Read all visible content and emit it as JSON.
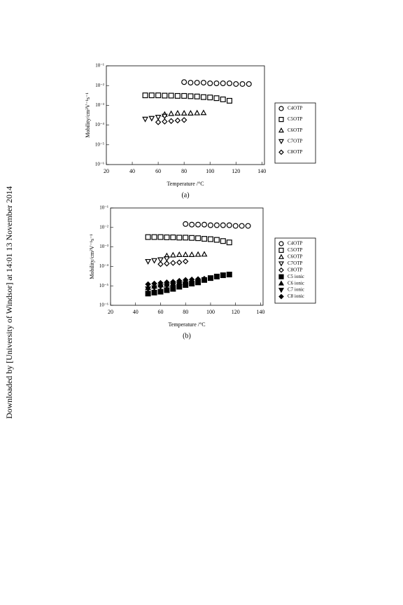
{
  "side_note": "Downloaded by [University of Windsor] at 14:01 13 November 2014",
  "chart_data": [
    {
      "type": "scatter",
      "caption": "(a)",
      "x_label": "Temperature /°C",
      "y_label": "Mobility/cm²V⁻¹s⁻¹",
      "xlim": [
        20,
        142
      ],
      "xticks": [
        20,
        40,
        60,
        80,
        100,
        120,
        140
      ],
      "ylim": [
        1e-06,
        0.1
      ],
      "log_y": true,
      "yticks": [
        {
          "value": 1e-06,
          "label": "10⁻⁶"
        },
        {
          "value": 1e-05,
          "label": "10⁻⁵"
        },
        {
          "value": 0.0001,
          "label": "10⁻⁴"
        },
        {
          "value": 0.001,
          "label": "10⁻³"
        },
        {
          "value": 0.01,
          "label": "10⁻²"
        },
        {
          "value": 0.1,
          "label": "10⁻¹"
        }
      ],
      "series": [
        {
          "name": "C4OTP",
          "marker": "circle",
          "filled": false,
          "color": "#000",
          "x": [
            80,
            85,
            90,
            95,
            100,
            105,
            110,
            115,
            120,
            125,
            130
          ],
          "values": [
            0.015,
            0.014,
            0.014,
            0.014,
            0.013,
            0.013,
            0.013,
            0.013,
            0.012,
            0.012,
            0.012
          ]
        },
        {
          "name": "C5OTP",
          "marker": "square",
          "filled": false,
          "color": "#000",
          "x": [
            50,
            55,
            60,
            65,
            70,
            75,
            80,
            85,
            90,
            95,
            100,
            105,
            110,
            115
          ],
          "values": [
            0.0032,
            0.0032,
            0.0032,
            0.0031,
            0.0031,
            0.003,
            0.003,
            0.0029,
            0.0028,
            0.0026,
            0.0025,
            0.0023,
            0.002,
            0.0017
          ]
        },
        {
          "name": "C6OTP",
          "marker": "triangle-up",
          "filled": false,
          "color": "#000",
          "x": [
            65,
            70,
            75,
            80,
            85,
            90,
            95
          ],
          "values": [
            0.00035,
            0.00038,
            0.0004,
            0.0004,
            0.0004,
            0.00041,
            0.00042
          ]
        },
        {
          "name": "C7OTP",
          "marker": "triangle-down",
          "filled": false,
          "color": "#000",
          "x": [
            50,
            55,
            60,
            65
          ],
          "values": [
            0.0002,
            0.00022,
            0.00025,
            0.00028
          ]
        },
        {
          "name": "C8OTP",
          "marker": "diamond",
          "filled": false,
          "color": "#000",
          "x": [
            60,
            65,
            70,
            75,
            80
          ],
          "values": [
            0.00014,
            0.00015,
            0.00016,
            0.00017,
            0.00018
          ]
        }
      ]
    },
    {
      "type": "scatter",
      "caption": "(b)",
      "x_label": "Temperature /°C",
      "y_label": "Mobility/cm²V⁻¹s⁻¹",
      "xlim": [
        20,
        142
      ],
      "xticks": [
        20,
        40,
        60,
        80,
        100,
        120,
        140
      ],
      "ylim": [
        1e-06,
        0.1
      ],
      "log_y": true,
      "yticks": [
        {
          "value": 1e-06,
          "label": "10⁻⁶"
        },
        {
          "value": 1e-05,
          "label": "10⁻⁵"
        },
        {
          "value": 0.0001,
          "label": "10⁻⁴"
        },
        {
          "value": 0.001,
          "label": "10⁻³"
        },
        {
          "value": 0.01,
          "label": "10⁻²"
        },
        {
          "value": 0.1,
          "label": "10⁻¹"
        }
      ],
      "series": [
        {
          "name": "C4OTP",
          "marker": "circle",
          "filled": false,
          "color": "#000",
          "x": [
            80,
            85,
            90,
            95,
            100,
            105,
            110,
            115,
            120,
            125,
            130
          ],
          "values": [
            0.015,
            0.014,
            0.014,
            0.014,
            0.013,
            0.013,
            0.013,
            0.013,
            0.012,
            0.012,
            0.012
          ]
        },
        {
          "name": "C5OTP",
          "marker": "square",
          "filled": false,
          "color": "#000",
          "x": [
            50,
            55,
            60,
            65,
            70,
            75,
            80,
            85,
            90,
            95,
            100,
            105,
            110,
            115
          ],
          "values": [
            0.0032,
            0.0032,
            0.0032,
            0.0031,
            0.0031,
            0.003,
            0.003,
            0.0029,
            0.0028,
            0.0026,
            0.0025,
            0.0023,
            0.002,
            0.0017
          ]
        },
        {
          "name": "C6OTP",
          "marker": "triangle-up",
          "filled": false,
          "color": "#000",
          "x": [
            65,
            70,
            75,
            80,
            85,
            90,
            95
          ],
          "values": [
            0.00035,
            0.00038,
            0.0004,
            0.0004,
            0.0004,
            0.00041,
            0.00042
          ]
        },
        {
          "name": "C7OTP",
          "marker": "triangle-down",
          "filled": false,
          "color": "#000",
          "x": [
            50,
            55,
            60,
            65
          ],
          "values": [
            0.00018,
            0.0002,
            0.00022,
            0.00025
          ]
        },
        {
          "name": "C8OTP",
          "marker": "diamond",
          "filled": false,
          "color": "#000",
          "x": [
            60,
            65,
            70,
            75,
            80
          ],
          "values": [
            0.00013,
            0.00014,
            0.00015,
            0.00016,
            0.00018
          ]
        },
        {
          "name": "C5 ionic",
          "marker": "square",
          "filled": true,
          "color": "#000",
          "x": [
            50,
            55,
            60,
            65,
            70,
            75,
            80,
            85,
            90,
            95,
            100,
            105,
            110,
            115
          ],
          "values": [
            4e-06,
            4.5e-06,
            5e-06,
            6e-06,
            7e-06,
            9e-06,
            1.1e-05,
            1.3e-05,
            1.5e-05,
            2e-05,
            2.5e-05,
            3e-05,
            3.5e-05,
            3.8e-05
          ]
        },
        {
          "name": "C6 ionic",
          "marker": "triangle-up",
          "filled": true,
          "color": "#000",
          "x": [
            50,
            55,
            60,
            65,
            70,
            75,
            80
          ],
          "values": [
            8e-06,
            9.5e-06,
            1.1e-05,
            1.2e-05,
            1.3e-05,
            1.5e-05,
            1.6e-05
          ]
        },
        {
          "name": "C7 ionic",
          "marker": "triangle-down",
          "filled": true,
          "color": "#000",
          "x": [
            50,
            55,
            60,
            65,
            70,
            75,
            80
          ],
          "values": [
            7e-06,
            8e-06,
            9e-06,
            1e-05,
            1.1e-05,
            1.2e-05,
            1.3e-05
          ]
        },
        {
          "name": "C8 ionic",
          "marker": "diamond",
          "filled": true,
          "color": "#000",
          "x": [
            50,
            55,
            60,
            65,
            70,
            75,
            80,
            85,
            90,
            95
          ],
          "values": [
            1.2e-05,
            1.3e-05,
            1.4e-05,
            1.5e-05,
            1.6e-05,
            1.8e-05,
            2e-05,
            2.1e-05,
            2.2e-05,
            2.3e-05
          ]
        }
      ]
    }
  ]
}
